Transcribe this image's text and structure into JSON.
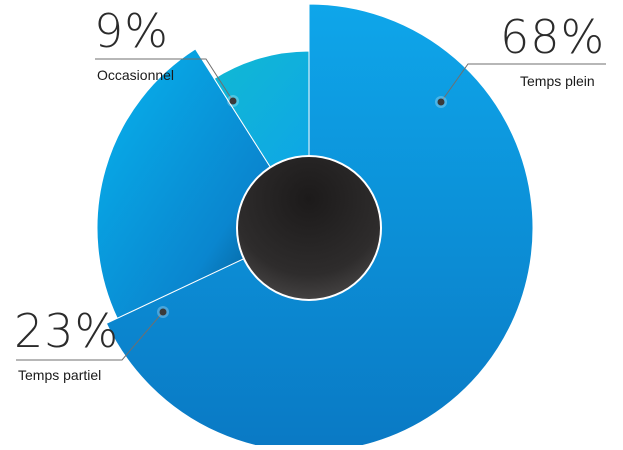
{
  "chart_data": {
    "type": "pie",
    "title": "",
    "slices": [
      {
        "label": "Temps plein",
        "value": 68,
        "value_label": "68%",
        "color": "#0a8fd8"
      },
      {
        "label": "Temps partiel",
        "value": 23,
        "value_label": "23%",
        "color": "#06a8ea"
      },
      {
        "label": "Occasionnel",
        "value": 9,
        "value_label": "9%",
        "color": "#11b7d9"
      }
    ],
    "center_color": "#2a2828",
    "leader_color": "#6f6f6f"
  }
}
